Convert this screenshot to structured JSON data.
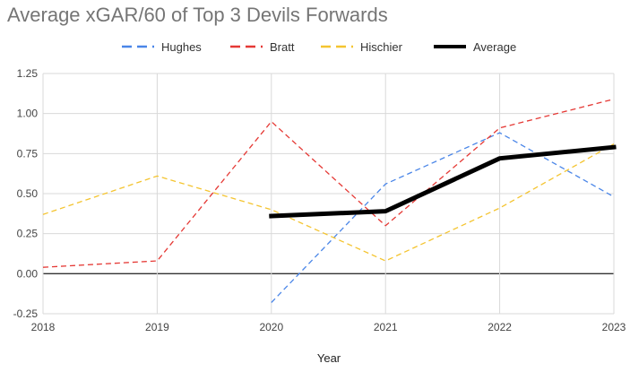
{
  "chart_data": {
    "type": "line",
    "title": "Average xGAR/60 of Top 3 Devils Forwards",
    "xlabel": "Year",
    "ylabel": "",
    "categories": [
      "2018",
      "2019",
      "2020",
      "2021",
      "2022",
      "2023"
    ],
    "ylim": [
      -0.25,
      1.25
    ],
    "yticks": [
      -0.25,
      0,
      0.25,
      0.5,
      0.75,
      1.0,
      1.25
    ],
    "ytick_labels": [
      "-0.25",
      "0.00",
      "0.25",
      "0.50",
      "0.75",
      "1.00",
      "1.25"
    ],
    "grid": true,
    "legend_position": "top",
    "series": [
      {
        "name": "Hughes",
        "color": "#4a86e8",
        "dashed": true,
        "values": [
          null,
          null,
          -0.18,
          0.56,
          0.88,
          0.48
        ]
      },
      {
        "name": "Bratt",
        "color": "#e53935",
        "dashed": true,
        "values": [
          0.04,
          0.08,
          0.95,
          0.3,
          0.91,
          1.09
        ]
      },
      {
        "name": "Hischier",
        "color": "#f4c430",
        "dashed": true,
        "values": [
          0.37,
          0.61,
          0.4,
          0.08,
          0.41,
          0.81
        ]
      },
      {
        "name": "Average",
        "color": "#000000",
        "dashed": false,
        "values": [
          null,
          null,
          0.36,
          0.39,
          0.72,
          0.79
        ]
      }
    ]
  }
}
